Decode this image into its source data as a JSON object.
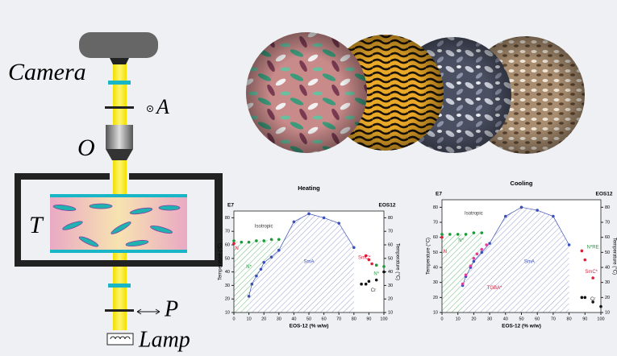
{
  "schematic": {
    "camera": "Camera",
    "analyzer": "A",
    "objective": "O",
    "sample": "T",
    "polarizer": "P",
    "lamp": "Lamp"
  },
  "chart_data": [
    {
      "type": "line",
      "title": "Heating",
      "x_label": "EOS-12 (% w/w)",
      "y_label": "Temperature (°C)",
      "y2_label": "Temperature (°C)",
      "left_label": "E7",
      "right_label": "EOS12",
      "xlim": [
        0,
        100
      ],
      "xticks": [
        0,
        10,
        20,
        30,
        40,
        50,
        60,
        70,
        80,
        90,
        100
      ],
      "ylim": [
        10,
        85
      ],
      "yticks": [
        10,
        20,
        30,
        40,
        50,
        60,
        70,
        80
      ],
      "y2lim": [
        10,
        85
      ],
      "y2ticks": [
        10,
        20,
        30,
        40,
        50,
        60,
        70,
        80
      ],
      "annotations": [
        "Isotropic",
        "SmA",
        "N*",
        "N",
        "SmC*",
        "N*",
        "Cr"
      ],
      "series": [
        {
          "color": "#1a9a3a",
          "x": [
            0,
            5,
            10,
            15,
            20,
            25,
            30
          ],
          "values": [
            63,
            62,
            62,
            63,
            63,
            64,
            64
          ]
        },
        {
          "color": "#3a4fb8",
          "connected": true,
          "x": [
            10,
            12,
            15,
            18,
            20,
            25,
            30,
            40,
            50,
            60,
            70,
            80
          ],
          "values": [
            22,
            31,
            37,
            42,
            47,
            51,
            56,
            77,
            83,
            80,
            76,
            58
          ]
        },
        {
          "color": "#d8203a",
          "x": [
            0,
            88,
            90,
            92
          ],
          "values": [
            61,
            52,
            49,
            46
          ]
        },
        {
          "color": "#1a9a3a",
          "x": [
            95,
            100
          ],
          "values": [
            45,
            44
          ]
        },
        {
          "color": "#111111",
          "x": [
            85,
            88,
            90,
            95,
            100
          ],
          "values": [
            31,
            31,
            33,
            34,
            40
          ]
        }
      ]
    },
    {
      "type": "line",
      "title": "Cooling",
      "x_label": "EOS-12 (% w/w)",
      "y_label": "Temperature (°C)",
      "y2_label": "Temperature (°C)",
      "left_label": "E7",
      "right_label": "EOS12",
      "xlim": [
        0,
        100
      ],
      "xticks": [
        0,
        10,
        20,
        30,
        40,
        50,
        60,
        70,
        80,
        90,
        100
      ],
      "ylim": [
        10,
        85
      ],
      "yticks": [
        10,
        20,
        30,
        40,
        50,
        60,
        70,
        80
      ],
      "y2lim": [
        10,
        85
      ],
      "y2ticks": [
        10,
        20,
        30,
        40,
        50,
        60,
        70,
        80
      ],
      "annotations": [
        "Isotropic",
        "SmA",
        "N*",
        "N",
        "TGBA*",
        "N*RE",
        "SmC*",
        "Cr"
      ],
      "series": [
        {
          "color": "#1a9a3a",
          "x": [
            0,
            5,
            10,
            15,
            20,
            25
          ],
          "values": [
            62,
            62,
            62,
            62,
            63,
            63
          ]
        },
        {
          "color": "#3a4fb8",
          "connected": true,
          "x": [
            13,
            15,
            18,
            20,
            25,
            30,
            40,
            50,
            60,
            70,
            80
          ],
          "values": [
            28,
            34,
            40,
            44,
            50,
            56,
            74,
            80,
            78,
            74,
            55
          ]
        },
        {
          "color": "#e0409a",
          "x": [
            13,
            15,
            18,
            20,
            22,
            25,
            28
          ],
          "values": [
            29,
            35,
            41,
            46,
            49,
            52,
            55
          ]
        },
        {
          "color": "#d8203a",
          "x": [
            0,
            88,
            90,
            95
          ],
          "values": [
            60,
            51,
            45,
            33
          ]
        },
        {
          "color": "#111111",
          "x": [
            88,
            90,
            95,
            100
          ],
          "values": [
            20,
            20,
            17,
            14
          ]
        }
      ]
    }
  ]
}
